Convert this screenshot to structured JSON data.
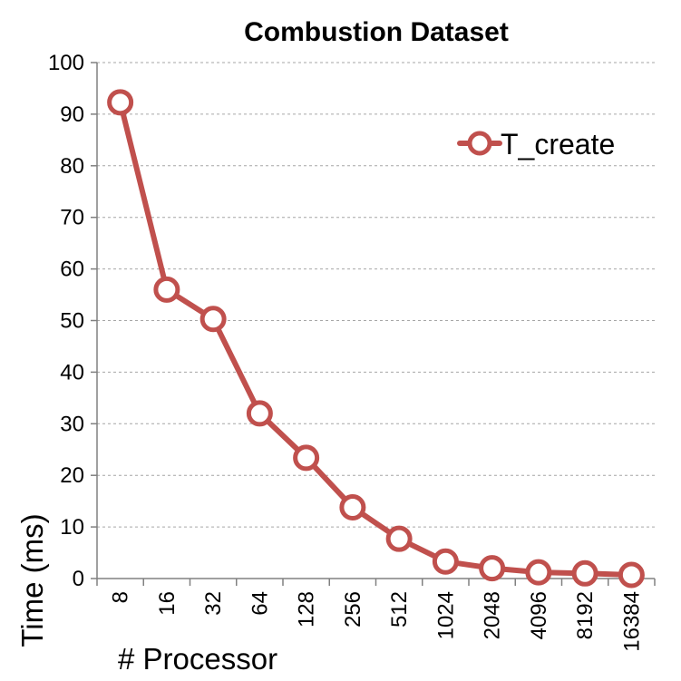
{
  "chart_data": {
    "type": "line",
    "title": "Combustion Dataset",
    "xlabel": "# Processor",
    "ylabel": "Time (ms)",
    "categories": [
      "8",
      "16",
      "32",
      "64",
      "128",
      "256",
      "512",
      "1024",
      "2048",
      "4096",
      "8192",
      "16384"
    ],
    "ylim": [
      0,
      100
    ],
    "yticks": [
      "0",
      "10",
      "20",
      "30",
      "40",
      "50",
      "60",
      "70",
      "80",
      "90",
      "100"
    ],
    "grid": true,
    "legend_position": "top-right",
    "series": [
      {
        "name": "T_create",
        "color": "#c0504d",
        "values": [
          92.3,
          56.0,
          50.3,
          32.0,
          23.4,
          13.8,
          7.7,
          3.3,
          2.0,
          1.2,
          1.0,
          0.7
        ]
      }
    ]
  }
}
